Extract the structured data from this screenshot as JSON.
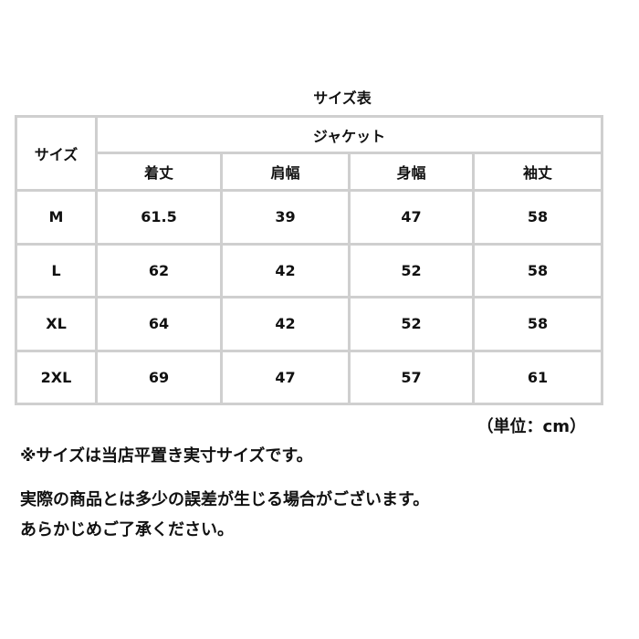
{
  "title": "サイズ表",
  "table": {
    "size_header": "サイズ",
    "group_header": "ジャケット",
    "columns": [
      "着丈",
      "肩幅",
      "身幅",
      "袖丈"
    ],
    "rows": [
      {
        "size": "M",
        "values": [
          "61.5",
          "39",
          "47",
          "58"
        ]
      },
      {
        "size": "L",
        "values": [
          "62",
          "42",
          "52",
          "58"
        ]
      },
      {
        "size": "XL",
        "values": [
          "64",
          "42",
          "52",
          "58"
        ]
      },
      {
        "size": "2XL",
        "values": [
          "69",
          "47",
          "57",
          "61"
        ]
      }
    ]
  },
  "unit": "（単位：cm）",
  "notes": [
    "※サイズは当店平置き実寸サイズです。",
    "実際の商品とは多少の誤差が生じる場合がございます。",
    "あらかじめご了承ください。"
  ]
}
